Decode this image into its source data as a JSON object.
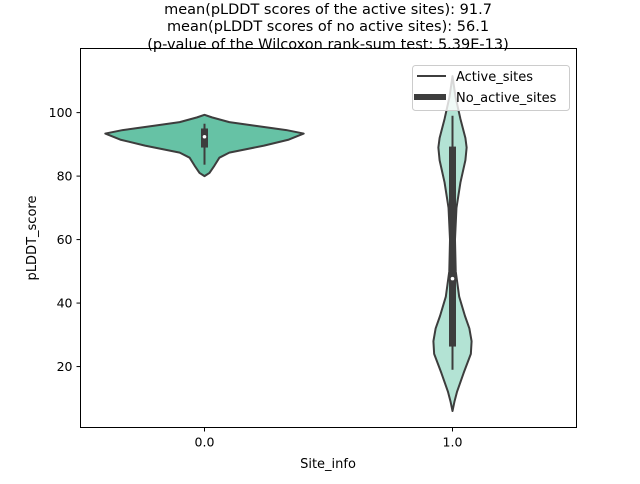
{
  "chart_data": {
    "type": "violin",
    "title_lines": [
      "mean(pLDDT scores of the active sites): 91.7",
      "mean(pLDDT scores of no active sites): 56.1",
      "(p-value of the Wilcoxon rank-sum test: 5.39E-13)"
    ],
    "xlabel": "Site_info",
    "ylabel": "pLDDT_score",
    "categories": [
      "0.0",
      "1.0"
    ],
    "xlim": [
      -0.5,
      1.5
    ],
    "ylim": [
      0.8,
      120.2
    ],
    "yticks": [
      20,
      40,
      60,
      80,
      100
    ],
    "legend": {
      "placement": "top-right",
      "entries": [
        {
          "label": "Active_sites",
          "style": "thin-line"
        },
        {
          "label": "No_active_sites",
          "style": "thick-line"
        }
      ]
    },
    "colors": {
      "violin0": "#66c2a5",
      "violin1": "#b3e3d4",
      "edge": "#3d3d3d"
    },
    "violins": [
      {
        "category": "0.0",
        "box": {
          "whisker_low": 83.6,
          "q1": 89,
          "median": 92.4,
          "q3": 95,
          "whisker_high": 96.5
        },
        "profile": [
          [
            80,
            0
          ],
          [
            81,
            0.02
          ],
          [
            83.3,
            0.04
          ],
          [
            85.8,
            0.06
          ],
          [
            87.4,
            0.1
          ],
          [
            89.6,
            0.24
          ],
          [
            91.5,
            0.34
          ],
          [
            93.4,
            0.4
          ],
          [
            94.5,
            0.33
          ],
          [
            95.9,
            0.2
          ],
          [
            97,
            0.1
          ],
          [
            98.5,
            0.03
          ],
          [
            99.3,
            0
          ]
        ]
      },
      {
        "category": "1.0",
        "box": {
          "whisker_low": 19,
          "q1": 26.3,
          "median": 47.7,
          "q3": 89.3,
          "whisker_high": 99
        },
        "profile": [
          [
            6,
            0
          ],
          [
            9,
            0.008
          ],
          [
            12,
            0.018
          ],
          [
            18,
            0.045
          ],
          [
            24,
            0.074
          ],
          [
            28,
            0.077
          ],
          [
            32,
            0.068
          ],
          [
            36,
            0.05
          ],
          [
            42,
            0.027
          ],
          [
            50,
            0.013
          ],
          [
            60,
            0.01
          ],
          [
            70,
            0.016
          ],
          [
            78,
            0.032
          ],
          [
            85,
            0.052
          ],
          [
            89,
            0.057
          ],
          [
            92,
            0.052
          ],
          [
            98,
            0.032
          ],
          [
            105,
            0.012
          ],
          [
            111.5,
            0
          ]
        ]
      }
    ]
  }
}
